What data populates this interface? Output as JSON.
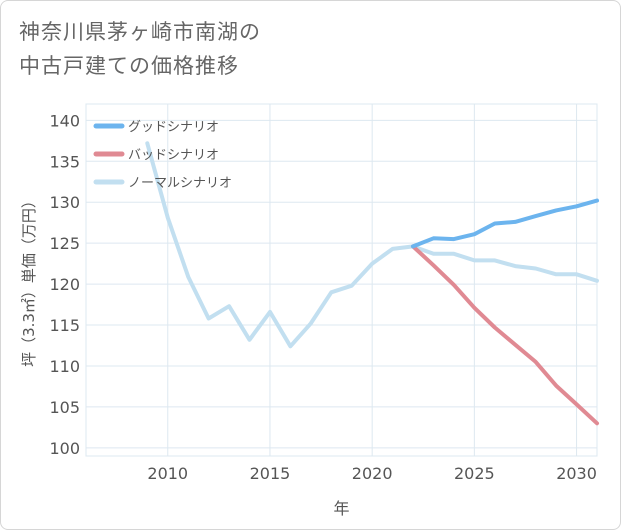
{
  "title_lines": [
    "神奈川県茅ヶ崎市南湖の",
    "中古戸建ての価格推移"
  ],
  "chart_data": {
    "type": "line",
    "xlabel": "年",
    "ylabel": "坪（3.3㎡）単価（万円）",
    "xlim": [
      2006,
      2031
    ],
    "ylim": [
      99,
      142
    ],
    "x_ticks": [
      2010,
      2015,
      2020,
      2025,
      2030
    ],
    "y_ticks": [
      100,
      105,
      110,
      115,
      120,
      125,
      130,
      135,
      140
    ],
    "grid": true,
    "legend_position": "top-left",
    "series": [
      {
        "name": "グッドシナリオ",
        "color": "#6cb4ee",
        "x": [
          2022,
          2023,
          2024,
          2025,
          2026,
          2027,
          2028,
          2029,
          2030,
          2031
        ],
        "y": [
          124.6,
          125.6,
          125.5,
          126.1,
          127.4,
          127.6,
          128.3,
          129.0,
          129.5,
          130.2
        ]
      },
      {
        "name": "バッドシナリオ",
        "color": "#e08a93",
        "x": [
          2022,
          2023,
          2024,
          2025,
          2026,
          2027,
          2028,
          2029,
          2030,
          2031
        ],
        "y": [
          124.6,
          122.3,
          119.9,
          117.1,
          114.7,
          112.6,
          110.5,
          107.6,
          105.3,
          103.0
        ]
      },
      {
        "name": "ノーマルシナリオ",
        "color": "#c2dff0",
        "x": [
          2009,
          2010,
          2011,
          2012,
          2013,
          2014,
          2015,
          2016,
          2017,
          2018,
          2019,
          2020,
          2021,
          2022,
          2023,
          2024,
          2025,
          2026,
          2027,
          2028,
          2029,
          2030,
          2031
        ],
        "y": [
          137.2,
          128.1,
          120.9,
          115.8,
          117.3,
          113.2,
          116.6,
          112.4,
          115.2,
          119.0,
          119.8,
          122.5,
          124.3,
          124.6,
          123.7,
          123.7,
          122.9,
          122.9,
          122.2,
          121.9,
          121.2,
          121.2,
          120.4
        ]
      }
    ]
  }
}
